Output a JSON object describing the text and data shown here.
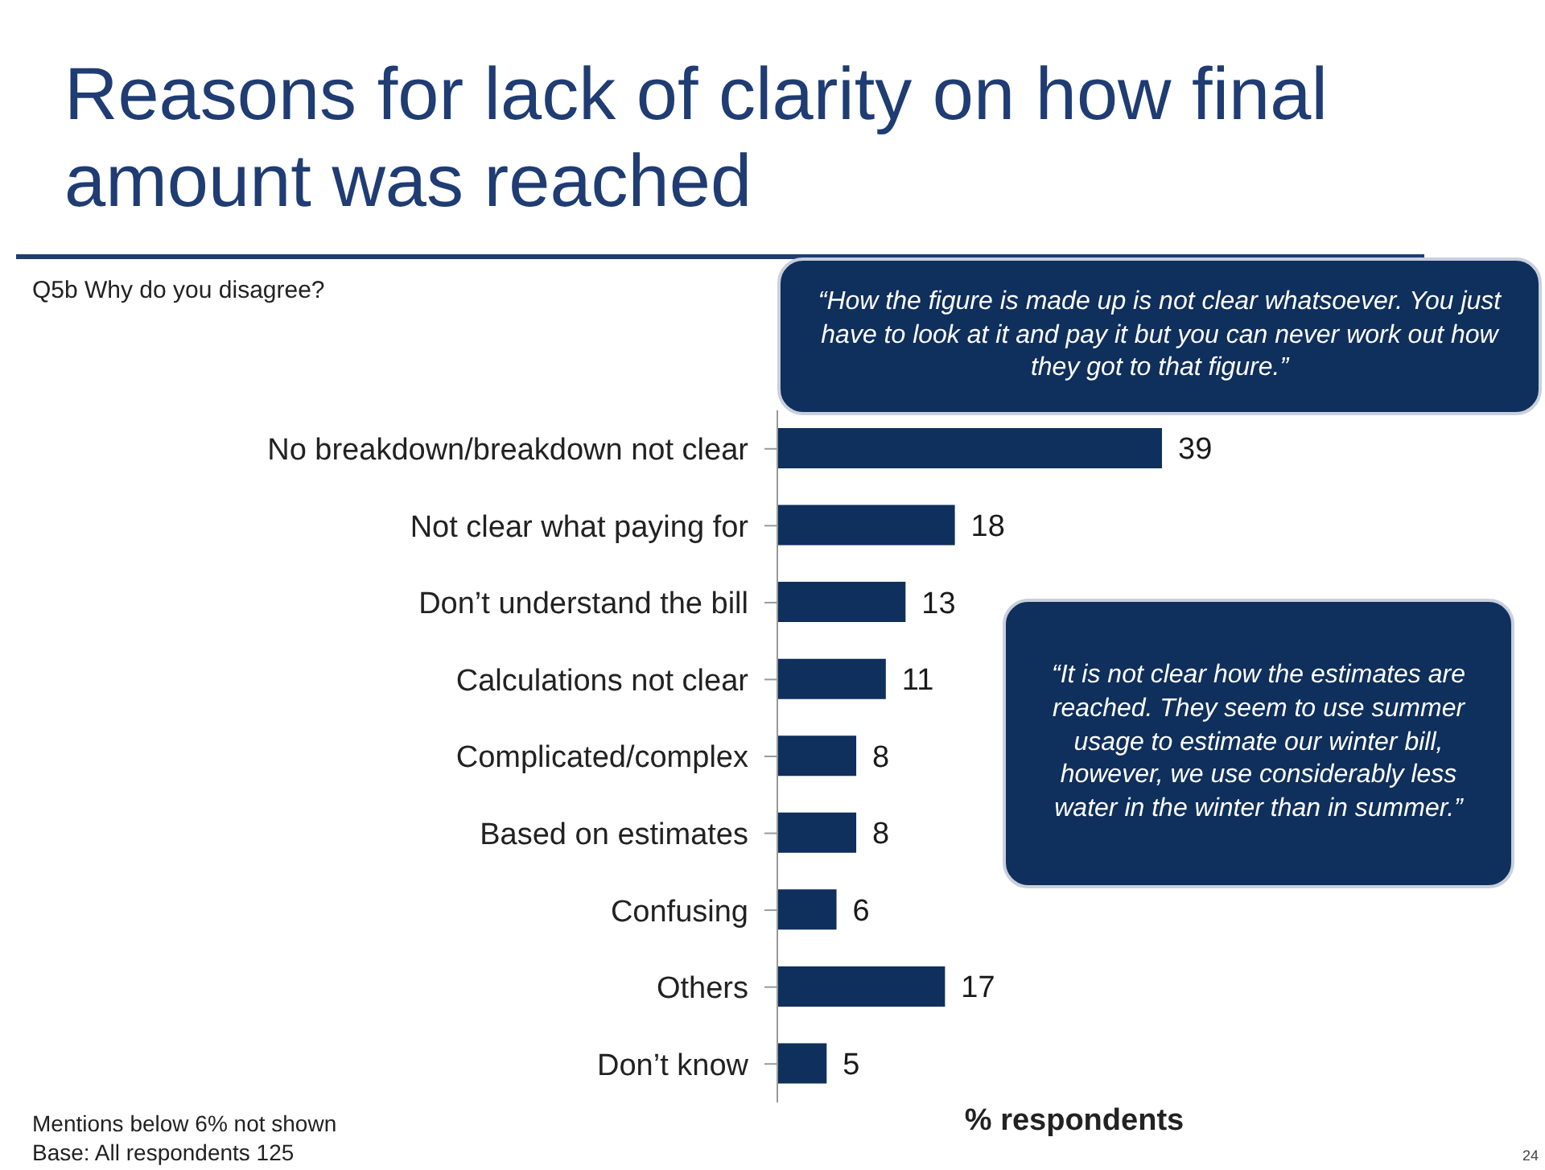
{
  "chart_data": {
    "type": "bar",
    "orientation": "horizontal",
    "title": "Reasons for lack of clarity on how final amount was reached",
    "subtitle": "Q5b Why do you disagree?",
    "xlabel": "% respondents",
    "categories": [
      "No breakdown/breakdown not clear",
      "Not clear what paying for",
      "Don’t understand the bill",
      "Calculations not clear",
      "Complicated/complex",
      "Based on estimates",
      "Confusing",
      "Others",
      "Don’t know"
    ],
    "values": [
      39,
      18,
      13,
      11,
      8,
      8,
      6,
      17,
      5
    ],
    "color": "#0f2f5c",
    "data_labels": true,
    "tick_labels": "y",
    "annotations": [
      "“How the figure is made up is not clear whatsoever. You just have to look at it and pay it but you can never work out how they got to that figure.”",
      "“It is not clear how the estimates are reached. They seem to use summer usage to estimate our winter bill, however, we use considerably less water in the winter than in summer.”",
      "Mentions below 6% not shown",
      "Base: All respondents 125",
      "24"
    ]
  }
}
